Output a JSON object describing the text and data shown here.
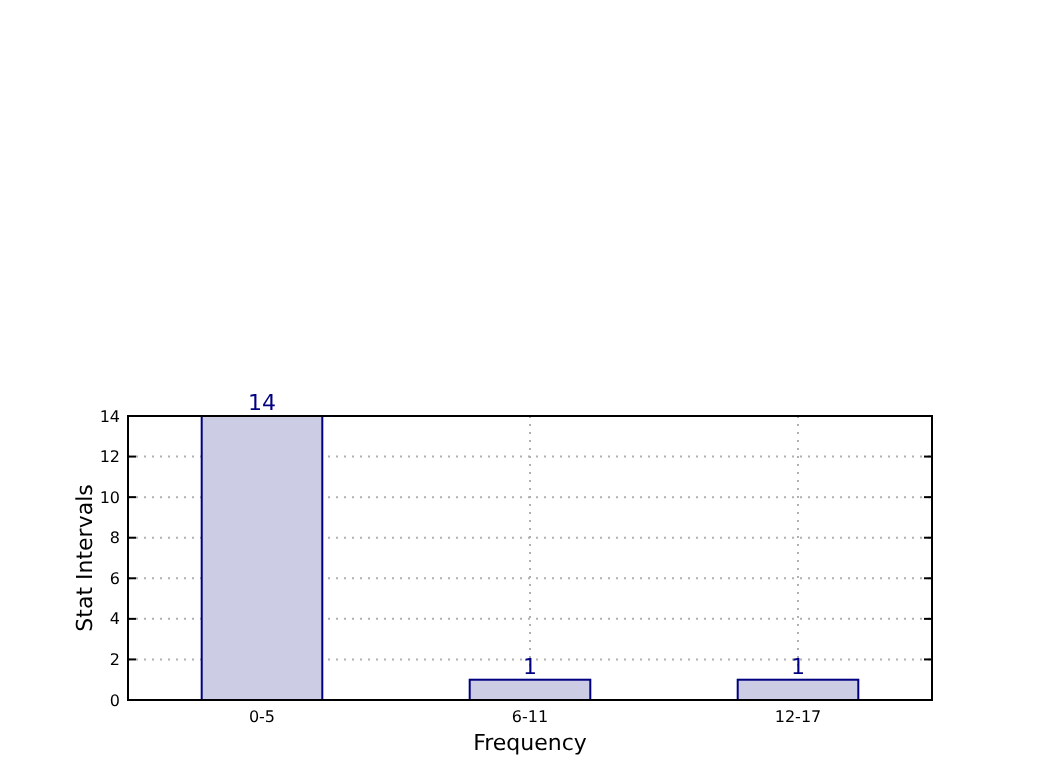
{
  "chart_data": {
    "type": "bar",
    "xlabel": "Frequency",
    "ylabel": "Stat Intervals",
    "categories": [
      "0-5",
      "6-11",
      "12-17"
    ],
    "values": [
      14,
      1,
      1
    ],
    "color": "#cccce4",
    "ylim": [
      0,
      14
    ],
    "yticks": [
      0,
      2,
      4,
      6,
      8,
      10,
      12,
      14
    ],
    "grid": true,
    "data_labels": true
  }
}
